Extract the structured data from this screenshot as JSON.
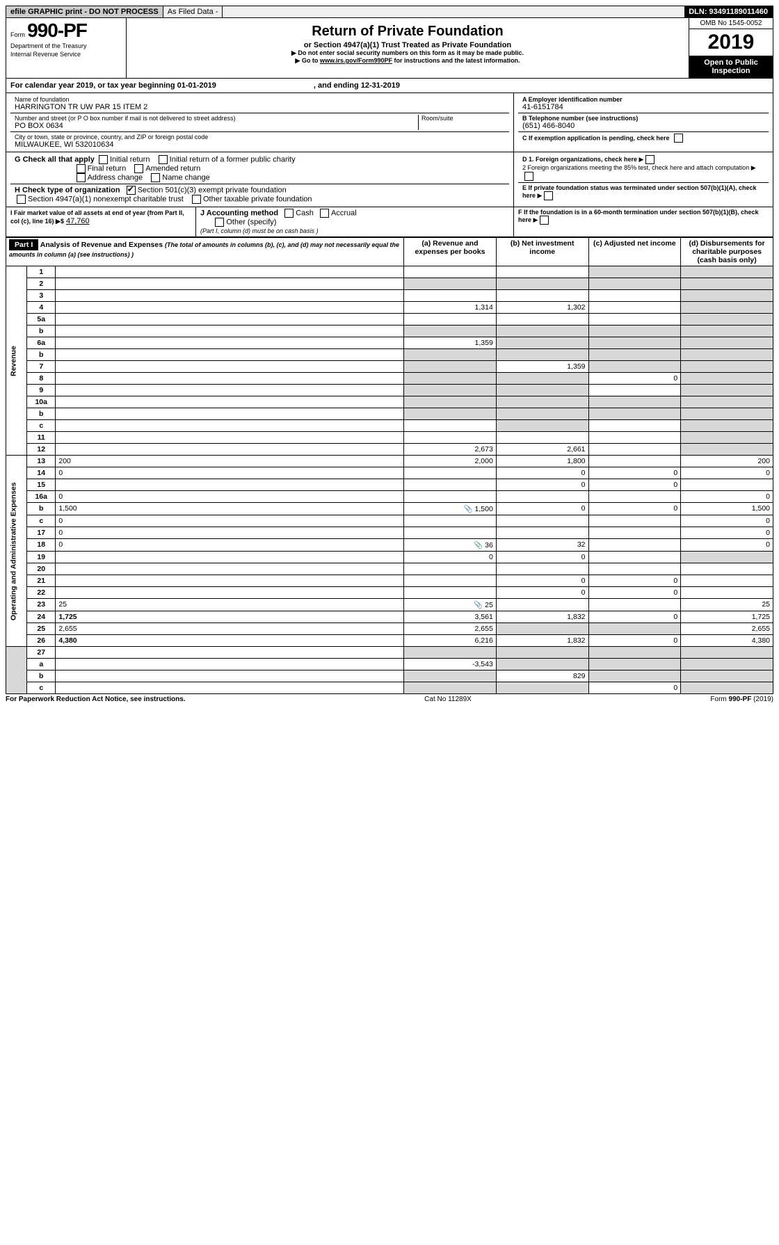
{
  "topbar": {
    "left": "efile GRAPHIC print - DO NOT PROCESS",
    "mid": "As Filed Data -",
    "right": "DLN: 93491189011460"
  },
  "header": {
    "form_small": "Form",
    "form_num": "990-PF",
    "dept": "Department of the Treasury",
    "irs": "Internal Revenue Service",
    "title": "Return of Private Foundation",
    "subtitle": "or Section 4947(a)(1) Trust Treated as Private Foundation",
    "note1": "▶ Do not enter social security numbers on this form as it may be made public.",
    "note2": "▶ Go to www.irs.gov/Form990PF for instructions and the latest information.",
    "omb": "OMB No 1545-0052",
    "year": "2019",
    "open": "Open to Public Inspection"
  },
  "cal": {
    "text": "For calendar year 2019, or tax year beginning 01-01-2019",
    "and": ", and ending 12-31-2019"
  },
  "ident": {
    "name_label": "Name of foundation",
    "name": "HARRINGTON TR UW PAR 15 ITEM 2",
    "addr_label": "Number and street (or P O  box number if mail is not delivered to street address)",
    "addr": "PO BOX 0634",
    "room_label": "Room/suite",
    "city_label": "City or town, state or province, country, and ZIP or foreign postal code",
    "city": "MILWAUKEE, WI  532010634",
    "ein_label": "A Employer identification number",
    "ein": "41-6151784",
    "tel_label": "B Telephone number (see instructions)",
    "tel": "(651) 466-8040",
    "c_label": "C If exemption application is pending, check here"
  },
  "checks": {
    "g_label": "G Check all that apply",
    "g1": "Initial return",
    "g2": "Initial return of a former public charity",
    "g3": "Final return",
    "g4": "Amended return",
    "g5": "Address change",
    "g6": "Name change",
    "h_label": "H Check type of organization",
    "h1": "Section 501(c)(3) exempt private foundation",
    "h2": "Section 4947(a)(1) nonexempt charitable trust",
    "h3": "Other taxable private foundation",
    "d1": "D 1. Foreign organizations, check here",
    "d2": "2 Foreign organizations meeting the 85% test, check here and attach computation",
    "e": "E  If private foundation status was terminated under section 507(b)(1)(A), check here",
    "f": "F  If the foundation is in a 60-month termination under section 507(b)(1)(B), check here",
    "i_label": "I Fair market value of all assets at end of year (from Part II, col  (c), line 16) ▶$",
    "i_val": "47,760",
    "j_label": "J Accounting method",
    "j1": "Cash",
    "j2": "Accrual",
    "j3": "Other (specify)",
    "j_note": "(Part I, column (d) must be on cash basis )"
  },
  "part1": {
    "hdr": "Part I",
    "title": "Analysis of Revenue and Expenses",
    "title_note": "(The total of amounts in columns (b), (c), and (d) may not necessarily equal the amounts in column (a) (see instructions) )",
    "col_a": "(a) Revenue and expenses per books",
    "col_b": "(b) Net investment income",
    "col_c": "(c) Adjusted net income",
    "col_d": "(d) Disbursements for charitable purposes (cash basis only)",
    "rev_label": "Revenue",
    "exp_label": "Operating and Administrative Expenses"
  },
  "lines": [
    {
      "n": "1",
      "d": "",
      "a": "",
      "b": "",
      "c": "",
      "cgrey": true,
      "dgrey": true
    },
    {
      "n": "2",
      "d": "",
      "a": "",
      "b": "",
      "c": "",
      "bgrey": true,
      "cgrey": true,
      "dgrey": true,
      "agrey": true
    },
    {
      "n": "3",
      "d": "",
      "a": "",
      "b": "",
      "c": "",
      "dgrey": true
    },
    {
      "n": "4",
      "d": "",
      "a": "1,314",
      "b": "1,302",
      "c": "",
      "dgrey": true
    },
    {
      "n": "5a",
      "d": "",
      "a": "",
      "b": "",
      "c": "",
      "dgrey": true
    },
    {
      "n": "b",
      "d": "",
      "a": "",
      "b": "",
      "c": "",
      "bgrey": true,
      "cgrey": true,
      "dgrey": true,
      "agrey": true
    },
    {
      "n": "6a",
      "d": "",
      "a": "1,359",
      "b": "",
      "c": "",
      "bgrey": true,
      "cgrey": true,
      "dgrey": true
    },
    {
      "n": "b",
      "d": "",
      "a": "",
      "b": "",
      "c": "",
      "bgrey": true,
      "cgrey": true,
      "dgrey": true,
      "agrey": true
    },
    {
      "n": "7",
      "d": "",
      "a": "",
      "b": "1,359",
      "c": "",
      "agrey": true,
      "cgrey": true,
      "dgrey": true
    },
    {
      "n": "8",
      "d": "",
      "a": "",
      "b": "",
      "c": "0",
      "agrey": true,
      "bgrey": true,
      "dgrey": true
    },
    {
      "n": "9",
      "d": "",
      "a": "",
      "b": "",
      "c": "",
      "agrey": true,
      "bgrey": true,
      "dgrey": true
    },
    {
      "n": "10a",
      "d": "",
      "a": "",
      "b": "",
      "c": "",
      "bgrey": true,
      "cgrey": true,
      "dgrey": true,
      "agrey": true
    },
    {
      "n": "b",
      "d": "",
      "a": "",
      "b": "",
      "c": "",
      "bgrey": true,
      "cgrey": true,
      "dgrey": true,
      "agrey": true
    },
    {
      "n": "c",
      "d": "",
      "a": "",
      "b": "",
      "c": "",
      "bgrey": true,
      "dgrey": true
    },
    {
      "n": "11",
      "d": "",
      "a": "",
      "b": "",
      "c": "",
      "dgrey": true
    },
    {
      "n": "12",
      "d": "",
      "a": "2,673",
      "b": "2,661",
      "c": "",
      "bold": true,
      "dgrey": true
    }
  ],
  "exp_lines": [
    {
      "n": "13",
      "d": "200",
      "a": "2,000",
      "b": "1,800",
      "c": ""
    },
    {
      "n": "14",
      "d": "0",
      "a": "",
      "b": "0",
      "c": "0"
    },
    {
      "n": "15",
      "d": "",
      "a": "",
      "b": "0",
      "c": "0"
    },
    {
      "n": "16a",
      "d": "0",
      "a": "",
      "b": "",
      "c": ""
    },
    {
      "n": "b",
      "d": "1,500",
      "a": "1,500",
      "b": "0",
      "c": "0",
      "icon": true
    },
    {
      "n": "c",
      "d": "0",
      "a": "",
      "b": "",
      "c": ""
    },
    {
      "n": "17",
      "d": "0",
      "a": "",
      "b": "",
      "c": ""
    },
    {
      "n": "18",
      "d": "0",
      "a": "36",
      "b": "32",
      "c": "",
      "icon": true
    },
    {
      "n": "19",
      "d": "",
      "a": "0",
      "b": "0",
      "c": "",
      "dgrey": true
    },
    {
      "n": "20",
      "d": "",
      "a": "",
      "b": "",
      "c": ""
    },
    {
      "n": "21",
      "d": "",
      "a": "",
      "b": "0",
      "c": "0"
    },
    {
      "n": "22",
      "d": "",
      "a": "",
      "b": "0",
      "c": "0"
    },
    {
      "n": "23",
      "d": "25",
      "a": "25",
      "b": "",
      "c": "",
      "icon": true
    },
    {
      "n": "24",
      "d": "1,725",
      "a": "3,561",
      "b": "1,832",
      "c": "0",
      "bold": true
    },
    {
      "n": "25",
      "d": "2,655",
      "a": "2,655",
      "b": "",
      "c": "",
      "bgrey": true,
      "cgrey": true
    },
    {
      "n": "26",
      "d": "4,380",
      "a": "6,216",
      "b": "1,832",
      "c": "0",
      "bold": true
    }
  ],
  "bottom_lines": [
    {
      "n": "27",
      "d": "",
      "a": "",
      "b": "",
      "c": "",
      "bgrey": true,
      "cgrey": true,
      "dgrey": true,
      "agrey": true
    },
    {
      "n": "a",
      "d": "",
      "a": "-3,543",
      "b": "",
      "c": "",
      "bold": true,
      "bgrey": true,
      "cgrey": true,
      "dgrey": true
    },
    {
      "n": "b",
      "d": "",
      "a": "",
      "b": "829",
      "c": "",
      "bold": true,
      "agrey": true,
      "cgrey": true,
      "dgrey": true
    },
    {
      "n": "c",
      "d": "",
      "a": "",
      "b": "",
      "c": "0",
      "bold": true,
      "agrey": true,
      "bgrey": true,
      "dgrey": true
    }
  ],
  "footer": {
    "left": "For Paperwork Reduction Act Notice, see instructions.",
    "mid": "Cat  No  11289X",
    "right": "Form 990-PF (2019)"
  }
}
